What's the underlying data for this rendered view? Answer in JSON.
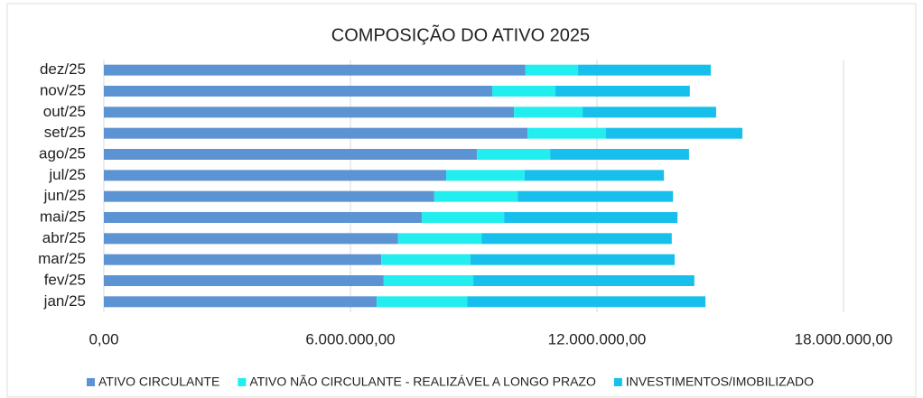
{
  "chart_data": {
    "type": "bar",
    "orientation": "horizontal",
    "stacked": true,
    "title": "COMPOSIÇÃO DO ATIVO 2025",
    "categories": [
      "jan/25",
      "fev/25",
      "mar/25",
      "abr/25",
      "mai/25",
      "jun/25",
      "jul/25",
      "ago/25",
      "set/25",
      "out/25",
      "nov/25",
      "dez/25"
    ],
    "series": [
      {
        "name": "ATIVO CIRCULANTE",
        "color": "#5b93d3",
        "values": [
          6640000,
          6810000,
          6750000,
          7160000,
          7740000,
          8040000,
          8330000,
          9080000,
          10310000,
          9980000,
          9450000,
          10260000
        ]
      },
      {
        "name": "ATIVO NÃO CIRCULANTE - REALIZÁVEL A LONGO PRAZO",
        "color": "#22eef0",
        "values": [
          2200000,
          2180000,
          2170000,
          2030000,
          2000000,
          2030000,
          1910000,
          1780000,
          1910000,
          1670000,
          1540000,
          1280000
        ]
      },
      {
        "name": "INVESTIMENTOS/IMOBILIZADO",
        "color": "#17c0ec",
        "values": [
          5800000,
          5380000,
          4970000,
          4630000,
          4220000,
          3780000,
          3390000,
          3380000,
          3320000,
          3250000,
          3270000,
          3230000
        ]
      }
    ],
    "xlim": [
      0,
      18000000
    ],
    "xticks": [
      {
        "value": 0,
        "label": "0,00"
      },
      {
        "value": 6000000,
        "label": "6.000.000,00"
      },
      {
        "value": 12000000,
        "label": "12.000.000,00"
      },
      {
        "value": 18000000,
        "label": "18.000.000,00"
      }
    ],
    "grid": true,
    "legend": "bottom"
  }
}
